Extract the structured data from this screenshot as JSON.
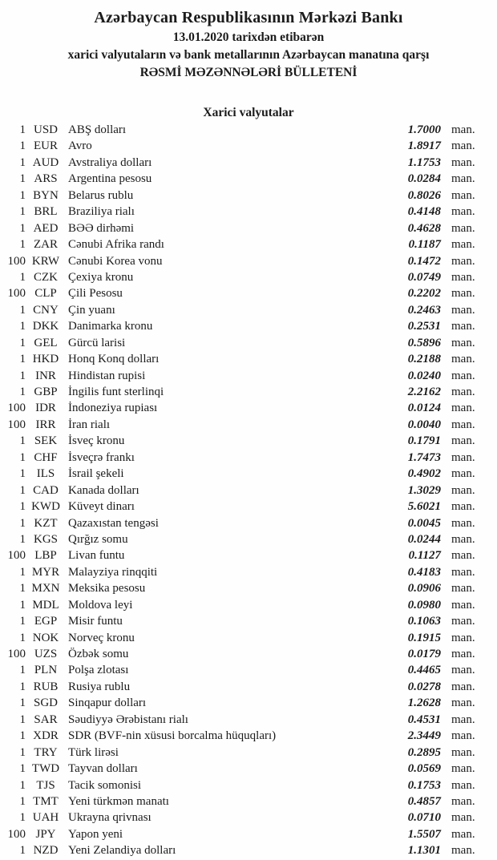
{
  "header": {
    "bank_name": "Azərbaycan Respublikasının Mərkəzi Bankı",
    "date_line": "13.01.2020 tarixdən etibarən",
    "subject_line": "xarici valyutaların və bank metallarının Azərbaycan manatına qarşı",
    "bulletin_title": "RƏSMİ MƏZƏNNƏLƏRİ BÜLLETENİ"
  },
  "section": {
    "title": "Xarici valyutalar"
  },
  "unit_label": "man.",
  "rates": [
    {
      "qty": "1",
      "code": "USD",
      "name": "ABŞ dolları",
      "rate": "1.7000",
      "unit": "man."
    },
    {
      "qty": "1",
      "code": "EUR",
      "name": "Avro",
      "rate": "1.8917",
      "unit": "man."
    },
    {
      "qty": "1",
      "code": "AUD",
      "name": "Avstraliya dolları",
      "rate": "1.1753",
      "unit": "man."
    },
    {
      "qty": "1",
      "code": "ARS",
      "name": "Argentina pesosu",
      "rate": "0.0284",
      "unit": "man."
    },
    {
      "qty": "1",
      "code": "BYN",
      "name": "Belarus rublu",
      "rate": "0.8026",
      "unit": "man."
    },
    {
      "qty": "1",
      "code": "BRL",
      "name": "Braziliya rialı",
      "rate": "0.4148",
      "unit": "man."
    },
    {
      "qty": "1",
      "code": "AED",
      "name": "BƏƏ dirhəmi",
      "rate": "0.4628",
      "unit": "man."
    },
    {
      "qty": "1",
      "code": "ZAR",
      "name": "Cənubi Afrika randı",
      "rate": "0.1187",
      "unit": "man."
    },
    {
      "qty": "100",
      "code": "KRW",
      "name": "Cənubi Korea vonu",
      "rate": "0.1472",
      "unit": "man."
    },
    {
      "qty": "1",
      "code": "CZK",
      "name": "Çexiya kronu",
      "rate": "0.0749",
      "unit": "man."
    },
    {
      "qty": "100",
      "code": "CLP",
      "name": "Çili Pesosu",
      "rate": "0.2202",
      "unit": "man."
    },
    {
      "qty": "1",
      "code": "CNY",
      "name": "Çin yuanı",
      "rate": "0.2463",
      "unit": "man."
    },
    {
      "qty": "1",
      "code": "DKK",
      "name": "Danimarka kronu",
      "rate": "0.2531",
      "unit": "man."
    },
    {
      "qty": "1",
      "code": "GEL",
      "name": "Gürcü larisi",
      "rate": "0.5896",
      "unit": "man."
    },
    {
      "qty": "1",
      "code": "HKD",
      "name": "Honq Konq dolları",
      "rate": "0.2188",
      "unit": "man."
    },
    {
      "qty": "1",
      "code": "INR",
      "name": "Hindistan rupisi",
      "rate": "0.0240",
      "unit": "man."
    },
    {
      "qty": "1",
      "code": "GBP",
      "name": "İngilis funt sterlinqi",
      "rate": "2.2162",
      "unit": "man."
    },
    {
      "qty": "100",
      "code": "IDR",
      "name": "İndoneziya rupiası",
      "rate": "0.0124",
      "unit": "man."
    },
    {
      "qty": "100",
      "code": "IRR",
      "name": "İran rialı",
      "rate": "0.0040",
      "unit": "man."
    },
    {
      "qty": "1",
      "code": "SEK",
      "name": "İsveç kronu",
      "rate": "0.1791",
      "unit": "man."
    },
    {
      "qty": "1",
      "code": "CHF",
      "name": "İsveçrə frankı",
      "rate": "1.7473",
      "unit": "man."
    },
    {
      "qty": "1",
      "code": "ILS",
      "name": "İsrail şekeli",
      "rate": "0.4902",
      "unit": "man."
    },
    {
      "qty": "1",
      "code": "CAD",
      "name": "Kanada dolları",
      "rate": "1.3029",
      "unit": "man."
    },
    {
      "qty": "1",
      "code": "KWD",
      "name": "Küveyt dinarı",
      "rate": "5.6021",
      "unit": "man."
    },
    {
      "qty": "1",
      "code": "KZT",
      "name": "Qazaxıstan tengəsi",
      "rate": "0.0045",
      "unit": "man."
    },
    {
      "qty": "1",
      "code": "KGS",
      "name": "Qırğız somu",
      "rate": "0.0244",
      "unit": "man."
    },
    {
      "qty": "100",
      "code": "LBP",
      "name": "Livan funtu",
      "rate": "0.1127",
      "unit": "man."
    },
    {
      "qty": "1",
      "code": "MYR",
      "name": "Malayziya rinqqiti",
      "rate": "0.4183",
      "unit": "man."
    },
    {
      "qty": "1",
      "code": "MXN",
      "name": "Meksika pesosu",
      "rate": "0.0906",
      "unit": "man."
    },
    {
      "qty": "1",
      "code": "MDL",
      "name": "Moldova leyi",
      "rate": "0.0980",
      "unit": "man."
    },
    {
      "qty": "1",
      "code": "EGP",
      "name": "Misir funtu",
      "rate": "0.1063",
      "unit": "man."
    },
    {
      "qty": "1",
      "code": "NOK",
      "name": "Norveç kronu",
      "rate": "0.1915",
      "unit": "man."
    },
    {
      "qty": "100",
      "code": "UZS",
      "name": "Özbək somu",
      "rate": "0.0179",
      "unit": "man."
    },
    {
      "qty": "1",
      "code": "PLN",
      "name": "Polşa zlotası",
      "rate": "0.4465",
      "unit": "man."
    },
    {
      "qty": "1",
      "code": "RUB",
      "name": "Rusiya rublu",
      "rate": "0.0278",
      "unit": "man."
    },
    {
      "qty": "1",
      "code": "SGD",
      "name": "Sinqapur dolları",
      "rate": "1.2628",
      "unit": "man."
    },
    {
      "qty": "1",
      "code": "SAR",
      "name": "Səudiyyə Ərəbistanı rialı",
      "rate": "0.4531",
      "unit": "man."
    },
    {
      "qty": "1",
      "code": "XDR",
      "name": "SDR (BVF-nin xüsusi borcalma hüquqları)",
      "rate": "2.3449",
      "unit": "man."
    },
    {
      "qty": "1",
      "code": "TRY",
      "name": "Türk lirəsi",
      "rate": "0.2895",
      "unit": "man."
    },
    {
      "qty": "1",
      "code": "TWD",
      "name": "Tayvan dolları",
      "rate": "0.0569",
      "unit": "man."
    },
    {
      "qty": "1",
      "code": "TJS",
      "name": "Tacik somonisi",
      "rate": "0.1753",
      "unit": "man."
    },
    {
      "qty": "1",
      "code": "TMT",
      "name": "Yeni türkmən manatı",
      "rate": "0.4857",
      "unit": "man."
    },
    {
      "qty": "1",
      "code": "UAH",
      "name": "Ukrayna qrivnası",
      "rate": "0.0710",
      "unit": "man."
    },
    {
      "qty": "100",
      "code": "JPY",
      "name": "Yapon yeni",
      "rate": "1.5507",
      "unit": "man."
    },
    {
      "qty": "1",
      "code": "NZD",
      "name": "Yeni Zelandiya dolları",
      "rate": "1.1301",
      "unit": "man."
    }
  ]
}
